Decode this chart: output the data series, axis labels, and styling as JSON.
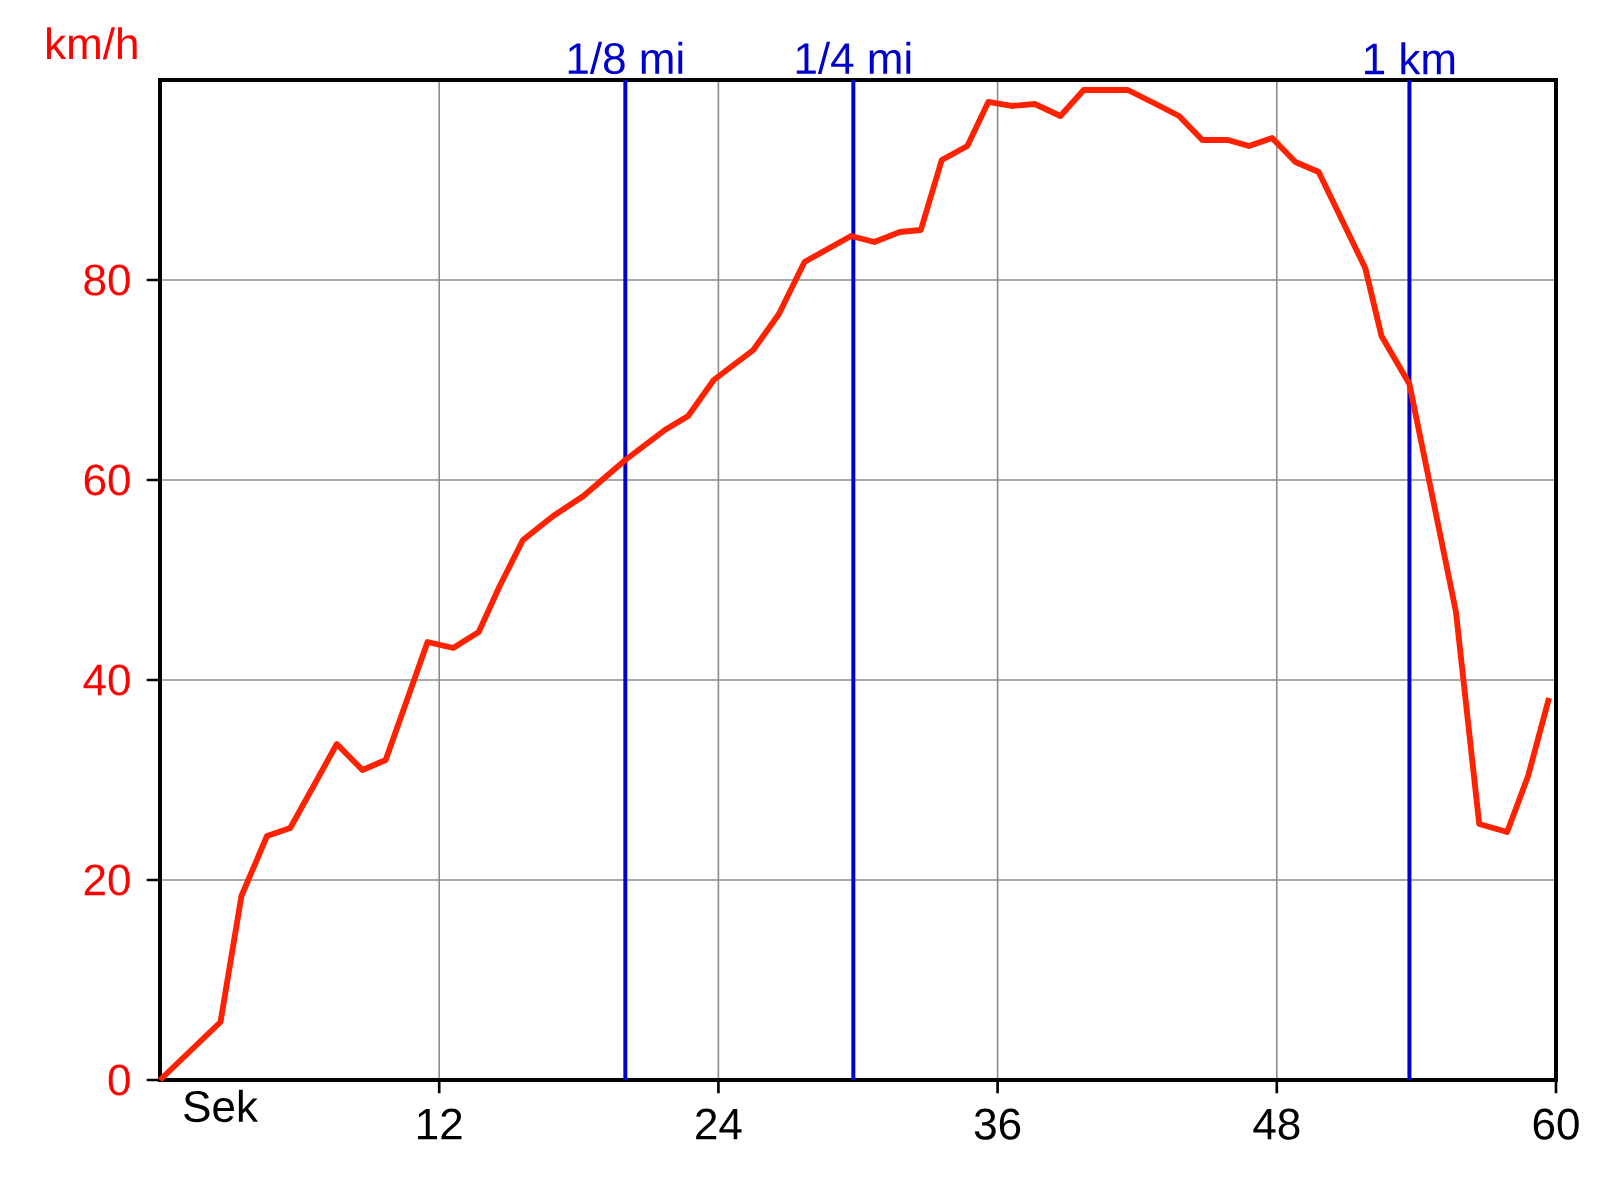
{
  "chart_data": {
    "type": "line",
    "xlabel": "Sek",
    "ylabel": "km/h",
    "x": [
      0,
      2.6,
      3.5,
      4.6,
      5.6,
      7.6,
      8.7,
      9.7,
      11.5,
      12.6,
      13.7,
      14.6,
      15.6,
      16.9,
      18.2,
      20,
      21.7,
      22.7,
      23.8,
      25.5,
      26.6,
      27.7,
      29.7,
      30.7,
      31.8,
      32.7,
      33.6,
      34.7,
      35.6,
      36.6,
      37.6,
      38.7,
      39.7,
      41.6,
      42.8,
      43.8,
      44.8,
      45.9,
      46.8,
      47.8,
      48.8,
      49.8,
      51.8,
      52.5,
      53.7,
      55.7,
      56.7,
      57.9,
      58.8,
      59.7
    ],
    "series": [
      {
        "color": "#ff2200",
        "values": [
          0,
          5.8,
          18.4,
          24.4,
          25.2,
          33.6,
          31,
          32,
          43.8,
          43.2,
          44.8,
          49.4,
          54,
          56.4,
          58.4,
          62,
          65,
          66.4,
          70,
          73,
          76.6,
          81.8,
          84.4,
          83.8,
          84.8,
          85,
          92,
          93.4,
          97.8,
          97.4,
          97.6,
          96.4,
          99,
          99,
          97.6,
          96.4,
          94,
          94,
          93.4,
          94.2,
          91.8,
          90.8,
          81.2,
          74.4,
          69.6,
          46.8,
          25.6,
          24.8,
          30.4,
          38.2
        ]
      }
    ],
    "xlim": [
      0,
      60
    ],
    "xticks": [
      12,
      24,
      36,
      48,
      60
    ],
    "ylim": [
      0,
      100
    ],
    "yticks": [
      0,
      20,
      40,
      60,
      80
    ],
    "grid": true,
    "line_style": "solid",
    "ref_lines": [
      {
        "axis": "x",
        "value": 20,
        "label": "1/8 mi",
        "color": "#0000cc"
      },
      {
        "axis": "x",
        "value": 29.8,
        "label": "1/4 mi",
        "color": "#0000cc"
      },
      {
        "axis": "x",
        "value": 53.7,
        "label": "1 km",
        "color": "#0000cc"
      }
    ]
  }
}
